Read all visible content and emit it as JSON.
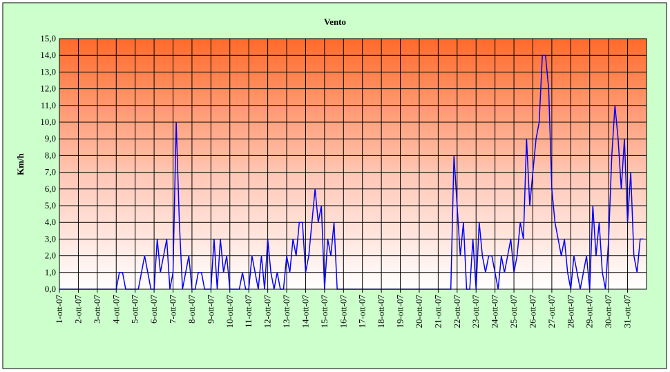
{
  "chart_data": {
    "type": "line",
    "title": "Vento",
    "ylabel": "Km/h",
    "categories": [
      "1-ott-07",
      null,
      null,
      null,
      null,
      null,
      "2-ott-07",
      null,
      null,
      null,
      null,
      null,
      "3-ott-07",
      null,
      null,
      null,
      null,
      null,
      "4-ott-07",
      null,
      null,
      null,
      null,
      null,
      "5-ott-07",
      null,
      null,
      null,
      null,
      null,
      "6-ott-07",
      null,
      null,
      null,
      null,
      null,
      "7-ott-07",
      null,
      null,
      null,
      null,
      null,
      "8-ott-07",
      null,
      null,
      null,
      null,
      null,
      "9-ott-07",
      null,
      null,
      null,
      null,
      null,
      "10-ott-07",
      null,
      null,
      null,
      null,
      null,
      "11-ott-07",
      null,
      null,
      null,
      null,
      null,
      "12-ott-07",
      null,
      null,
      null,
      null,
      null,
      "13-ott-07",
      null,
      null,
      null,
      null,
      null,
      "14-ott-07",
      null,
      null,
      null,
      null,
      null,
      "15-ott-07",
      null,
      null,
      null,
      null,
      null,
      "16-ott-07",
      null,
      null,
      null,
      null,
      null,
      "17-ott-07",
      null,
      null,
      null,
      null,
      null,
      "18-ott-07",
      null,
      null,
      null,
      null,
      null,
      "19-ott-07",
      null,
      null,
      null,
      null,
      null,
      "20-ott-07",
      null,
      null,
      null,
      null,
      null,
      "21-ott-07",
      null,
      null,
      null,
      null,
      null,
      "22-ott-07",
      null,
      null,
      null,
      null,
      null,
      "23-ott-07",
      null,
      null,
      null,
      null,
      null,
      "24-ott-07",
      null,
      null,
      null,
      null,
      null,
      "25-ott-07",
      null,
      null,
      null,
      null,
      null,
      "26-ott-07",
      null,
      null,
      null,
      null,
      null,
      "27-ott-07",
      null,
      null,
      null,
      null,
      null,
      "28-ott-07",
      null,
      null,
      null,
      null,
      null,
      "29-ott-07",
      null,
      null,
      null,
      null,
      null,
      "30-ott-07",
      null,
      null,
      null,
      null,
      null,
      "31-ott-07",
      null,
      null,
      null,
      null,
      null
    ],
    "series": [
      {
        "color": "#0000ff",
        "values": [
          0,
          0,
          0,
          0,
          0,
          0,
          0,
          0,
          0,
          0,
          0,
          0,
          0,
          0,
          0,
          0,
          0,
          0,
          0,
          1,
          1,
          0,
          0,
          0,
          0,
          0,
          1,
          2,
          1,
          0,
          0,
          3,
          1,
          2,
          3,
          0,
          1,
          10,
          4,
          0,
          1,
          2,
          0,
          0,
          1,
          1,
          0,
          0,
          0,
          3,
          0,
          3,
          1,
          2,
          0,
          0,
          0,
          0,
          1,
          0,
          0,
          2,
          1,
          0,
          2,
          0,
          3,
          1,
          0,
          1,
          0,
          0,
          2,
          1,
          3,
          2,
          4,
          4,
          1,
          2,
          4,
          6,
          4,
          5,
          0,
          3,
          2,
          4,
          0,
          0,
          0,
          0,
          0,
          0,
          0,
          0,
          0,
          0,
          0,
          0,
          0,
          0,
          0,
          0,
          0,
          0,
          0,
          0,
          0,
          0,
          0,
          0,
          0,
          0,
          0,
          0,
          0,
          0,
          0,
          0,
          0,
          0,
          0,
          0,
          0,
          8,
          5,
          2,
          4,
          0,
          0,
          3,
          0,
          4,
          2,
          1,
          2,
          2,
          1,
          0,
          2,
          1,
          2,
          3,
          1,
          2,
          4,
          3,
          9,
          5,
          7,
          9,
          10,
          14,
          14,
          12,
          6,
          4,
          3,
          2,
          3,
          1,
          0,
          2,
          1,
          0,
          1,
          2,
          0,
          5,
          2,
          4,
          1,
          0,
          3,
          8,
          11,
          9,
          6,
          9,
          4,
          7,
          2,
          1,
          3,
          3
        ]
      }
    ],
    "ylim": [
      0,
      15
    ],
    "yticks": [
      {
        "value": 0,
        "label": "0,0"
      },
      {
        "value": 1,
        "label": "1,0"
      },
      {
        "value": 2,
        "label": "2,0"
      },
      {
        "value": 3,
        "label": "3,0"
      },
      {
        "value": 4,
        "label": "4,0"
      },
      {
        "value": 5,
        "label": "5,0"
      },
      {
        "value": 6,
        "label": "6,0"
      },
      {
        "value": 7,
        "label": "7,0"
      },
      {
        "value": 8,
        "label": "8,0"
      },
      {
        "value": 9,
        "label": "9,0"
      },
      {
        "value": 10,
        "label": "10,0"
      },
      {
        "value": 11,
        "label": "11,0"
      },
      {
        "value": 12,
        "label": "12,0"
      },
      {
        "value": 13,
        "label": "13,0"
      },
      {
        "value": 14,
        "label": "14,0"
      },
      {
        "value": 15,
        "label": "15,0"
      }
    ],
    "grid": true
  }
}
